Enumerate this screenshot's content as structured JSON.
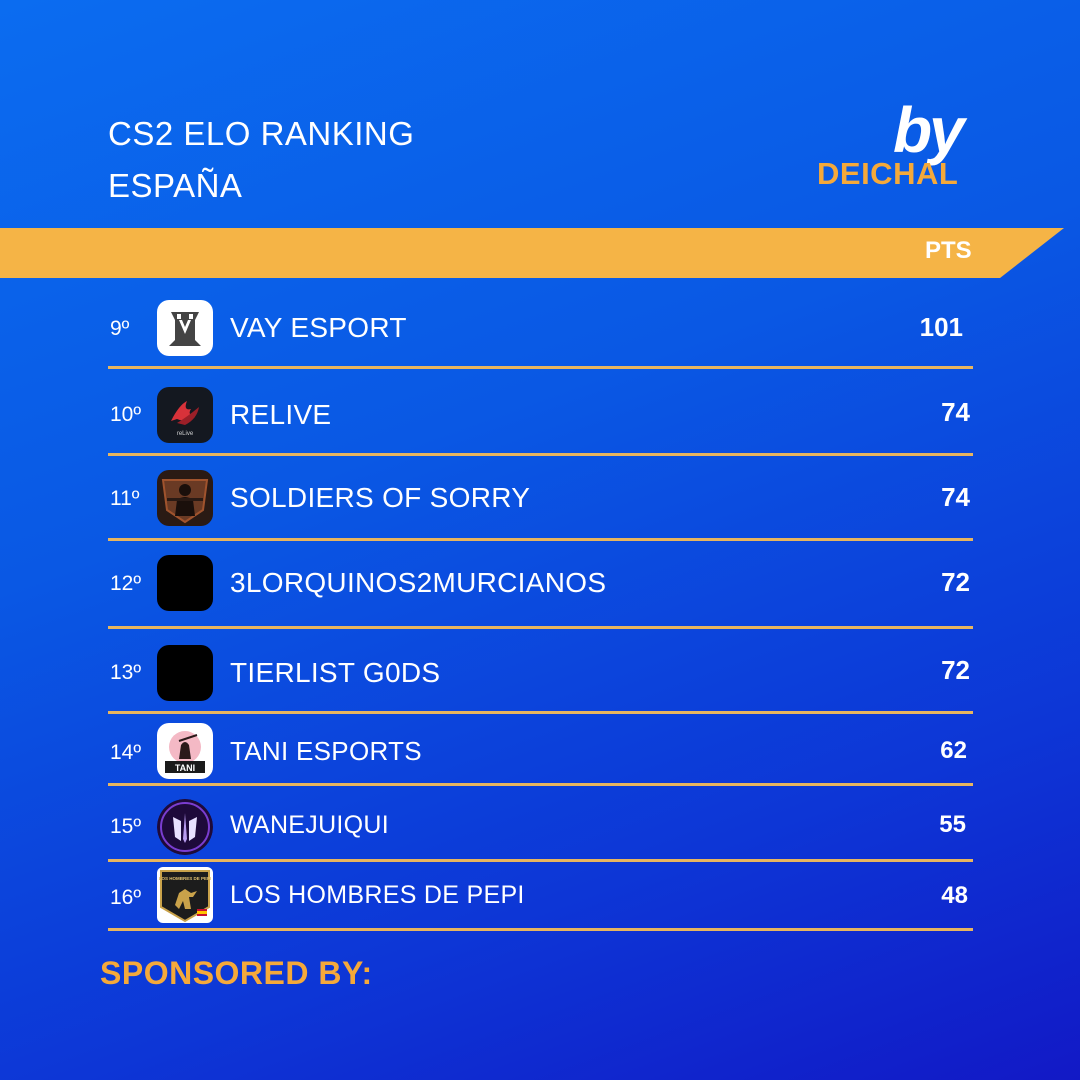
{
  "header": {
    "title_line1": "CS2 ELO RANKING",
    "title_line2": "ESPAÑA",
    "by_logo": "by",
    "brand": "DEICHAL"
  },
  "table": {
    "pts_header": "PTS",
    "rows": [
      {
        "rank": "9º",
        "team": "VAY ESPORT",
        "pts": "101",
        "logo": "vay-logo"
      },
      {
        "rank": "10º",
        "team": "RELIVE",
        "pts": "74",
        "logo": "relive-logo"
      },
      {
        "rank": "11º",
        "team": "SOLDIERS OF SORRY",
        "pts": "74",
        "logo": "soldiers-logo"
      },
      {
        "rank": "12º",
        "team": "3LORQUINOS2MURCIANOS",
        "pts": "72",
        "logo": "blank-logo"
      },
      {
        "rank": "13º",
        "team": "TIERLIST G0DS",
        "pts": "72",
        "logo": "blank-logo"
      },
      {
        "rank": "14º",
        "team": "TANI ESPORTS",
        "pts": "62",
        "logo": "tani-logo"
      },
      {
        "rank": "15º",
        "team": "WANEJUIQUI",
        "pts": "55",
        "logo": "wanejuiqui-logo"
      },
      {
        "rank": "16º",
        "team": "LOS HOMBRES DE PEPI",
        "pts": "48",
        "logo": "pepi-logo"
      }
    ]
  },
  "footer": {
    "sponsored": "SPONSORED BY:"
  },
  "logos_text": {
    "tani": "TANI",
    "pepi": "LOS HOMBRES DE PEPI",
    "relive": "reLive"
  },
  "colors": {
    "accent": "#f5a93a",
    "separator": "#e8b55f"
  }
}
